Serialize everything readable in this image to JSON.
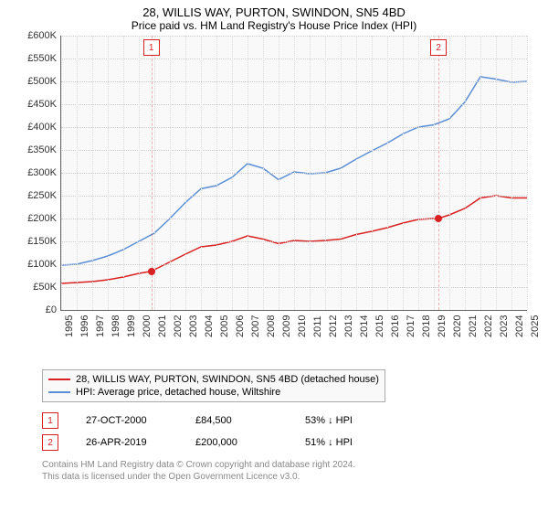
{
  "title": "28, WILLIS WAY, PURTON, SWINDON, SN5 4BD",
  "subtitle": "Price paid vs. HM Land Registry's House Price Index (HPI)",
  "chart": {
    "type": "line",
    "background_color": "#f9f9f9",
    "grid_color": "#dddddd",
    "axis_color": "#666666",
    "ylabel_prefix": "£",
    "ylim": [
      0,
      600000
    ],
    "ytick_step": 50000,
    "yticks": [
      "£0",
      "£50K",
      "£100K",
      "£150K",
      "£200K",
      "£250K",
      "£300K",
      "£350K",
      "£400K",
      "£450K",
      "£500K",
      "£550K",
      "£600K"
    ],
    "xlim": [
      1995,
      2025
    ],
    "xticks": [
      1995,
      1996,
      1997,
      1998,
      1999,
      2000,
      2001,
      2002,
      2003,
      2004,
      2005,
      2006,
      2007,
      2008,
      2009,
      2010,
      2011,
      2012,
      2013,
      2014,
      2015,
      2016,
      2017,
      2018,
      2019,
      2020,
      2021,
      2022,
      2023,
      2024,
      2025
    ],
    "series": [
      {
        "name": "28, WILLIS WAY, PURTON, SWINDON, SN5 4BD (detached house)",
        "color": "#d92121",
        "line_width": 1.5,
        "points": [
          [
            1995,
            58000
          ],
          [
            1996,
            60000
          ],
          [
            1997,
            62000
          ],
          [
            1998,
            66000
          ],
          [
            1999,
            72000
          ],
          [
            2000,
            80000
          ],
          [
            2000.8,
            84500
          ],
          [
            2001,
            88000
          ],
          [
            2002,
            105000
          ],
          [
            2003,
            122000
          ],
          [
            2004,
            138000
          ],
          [
            2005,
            142000
          ],
          [
            2006,
            150000
          ],
          [
            2007,
            162000
          ],
          [
            2008,
            155000
          ],
          [
            2009,
            145000
          ],
          [
            2010,
            152000
          ],
          [
            2011,
            150000
          ],
          [
            2012,
            152000
          ],
          [
            2013,
            155000
          ],
          [
            2014,
            165000
          ],
          [
            2015,
            172000
          ],
          [
            2016,
            180000
          ],
          [
            2017,
            190000
          ],
          [
            2018,
            198000
          ],
          [
            2019,
            200000
          ],
          [
            2019.3,
            200000
          ],
          [
            2020,
            208000
          ],
          [
            2021,
            222000
          ],
          [
            2022,
            245000
          ],
          [
            2023,
            250000
          ],
          [
            2024,
            245000
          ],
          [
            2025,
            245000
          ]
        ]
      },
      {
        "name": "HPI: Average price, detached house, Wiltshire",
        "color": "#5b8fd6",
        "line_width": 1.5,
        "points": [
          [
            1995,
            98000
          ],
          [
            1996,
            100000
          ],
          [
            1997,
            108000
          ],
          [
            1998,
            118000
          ],
          [
            1999,
            132000
          ],
          [
            2000,
            150000
          ],
          [
            2001,
            168000
          ],
          [
            2002,
            200000
          ],
          [
            2003,
            235000
          ],
          [
            2004,
            265000
          ],
          [
            2005,
            272000
          ],
          [
            2006,
            290000
          ],
          [
            2007,
            320000
          ],
          [
            2008,
            310000
          ],
          [
            2009,
            285000
          ],
          [
            2010,
            302000
          ],
          [
            2011,
            298000
          ],
          [
            2012,
            300000
          ],
          [
            2013,
            310000
          ],
          [
            2014,
            330000
          ],
          [
            2015,
            348000
          ],
          [
            2016,
            365000
          ],
          [
            2017,
            385000
          ],
          [
            2018,
            400000
          ],
          [
            2019,
            405000
          ],
          [
            2020,
            418000
          ],
          [
            2021,
            455000
          ],
          [
            2022,
            510000
          ],
          [
            2023,
            505000
          ],
          [
            2024,
            498000
          ],
          [
            2025,
            500000
          ]
        ]
      }
    ],
    "transactions": [
      {
        "n": "1",
        "year": 2000.8,
        "price": 84500,
        "color": "#d92121"
      },
      {
        "n": "2",
        "year": 2019.3,
        "price": 200000,
        "color": "#d92121"
      }
    ]
  },
  "legend": [
    {
      "label": "28, WILLIS WAY, PURTON, SWINDON, SN5 4BD (detached house)",
      "color": "#d92121"
    },
    {
      "label": "HPI: Average price, detached house, Wiltshire",
      "color": "#5b8fd6"
    }
  ],
  "txtable": [
    {
      "n": "1",
      "date": "27-OCT-2000",
      "price": "£84,500",
      "delta": "53% ↓ HPI",
      "color": "#d92121"
    },
    {
      "n": "2",
      "date": "26-APR-2019",
      "price": "£200,000",
      "delta": "51% ↓ HPI",
      "color": "#d92121"
    }
  ],
  "footer_lines": [
    "Contains HM Land Registry data © Crown copyright and database right 2024.",
    "This data is licensed under the Open Government Licence v3.0."
  ]
}
